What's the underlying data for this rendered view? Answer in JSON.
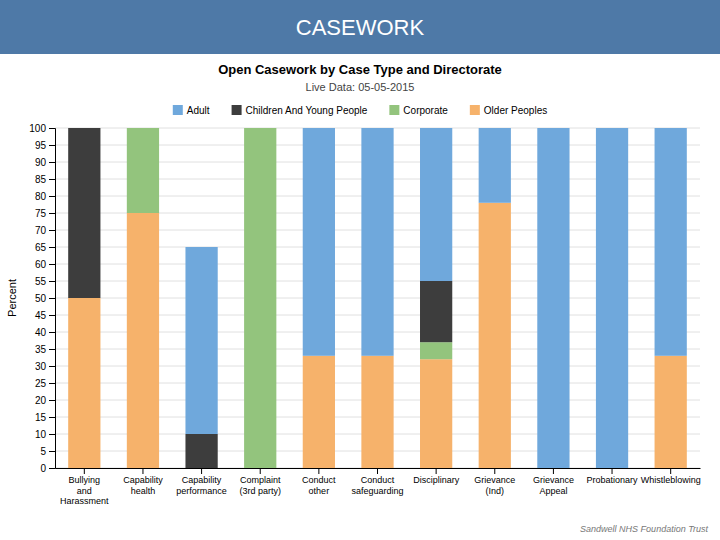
{
  "chart_data": {
    "type": "bar",
    "stacked": true,
    "title": "Open Casework by Case Type and Directorate",
    "subtitle": "Live Data: 05-05-2015",
    "ylabel": "Percent",
    "annotations": [
      "CASEWORK",
      "Sandwell NHS Foundation Trust"
    ],
    "categories": [
      "Bullying\nand\nHarassment",
      "Capability\nhealth",
      "Capability\nperformance",
      "Complaint\n(3rd party)",
      "Conduct\nother",
      "Conduct\nsafeguarding",
      "Disciplinary",
      "Grievance\n(Ind)",
      "Grievance\nAppeal",
      "Probationary",
      "Whistleblowing"
    ],
    "series": [
      {
        "name": "Older Peoples",
        "color": "#f6b26b",
        "values": [
          50,
          75,
          0,
          0,
          33,
          33,
          32,
          78,
          0,
          0,
          33
        ]
      },
      {
        "name": "Corporate",
        "color": "#93c47d",
        "values": [
          0,
          25,
          0,
          100,
          0,
          0,
          5,
          0,
          0,
          0,
          0
        ]
      },
      {
        "name": "Children And Young People",
        "color": "#3d3d3d",
        "values": [
          50,
          0,
          10,
          0,
          0,
          0,
          18,
          0,
          0,
          0,
          0
        ]
      },
      {
        "name": "Adult",
        "color": "#6fa8dc",
        "values": [
          0,
          0,
          55,
          0,
          67,
          67,
          45,
          22,
          100,
          100,
          67
        ]
      }
    ],
    "ylim": [
      0,
      100
    ],
    "yticks": [
      0,
      5,
      10,
      15,
      20,
      25,
      30,
      35,
      40,
      45,
      50,
      55,
      60,
      65,
      70,
      75,
      80,
      85,
      90,
      95,
      100
    ],
    "grid": true,
    "legend": "top"
  }
}
